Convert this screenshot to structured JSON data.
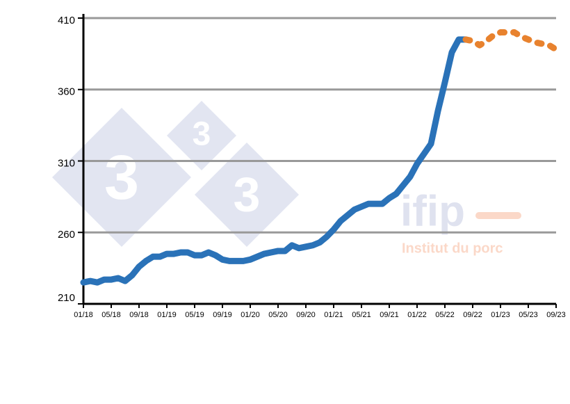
{
  "chart_data": {
    "type": "line",
    "categories": [
      "01/18",
      null,
      null,
      null,
      "05/18",
      null,
      null,
      null,
      "09/18",
      null,
      null,
      null,
      "01/19",
      null,
      null,
      null,
      "05/19",
      null,
      null,
      null,
      "09/19",
      null,
      null,
      null,
      "01/20",
      null,
      null,
      null,
      "05/20",
      null,
      null,
      null,
      "09/20",
      null,
      null,
      null,
      "01/21",
      null,
      null,
      null,
      "05/21",
      null,
      null,
      null,
      "09/21",
      null,
      null,
      null,
      "01/22",
      null,
      null,
      null,
      "05/22",
      null,
      null,
      null,
      "09/22",
      null,
      null,
      null,
      "01/23",
      null,
      null,
      null,
      "05/23",
      null,
      null,
      null,
      "09/23"
    ],
    "series": [
      {
        "color": "#2a72b8",
        "style": "solid",
        "values": [
          225,
          226,
          225,
          227,
          227,
          228,
          226,
          230,
          236,
          240,
          243,
          243,
          245,
          245,
          246,
          246,
          244,
          244,
          246,
          244,
          241,
          240,
          240,
          240,
          241,
          243,
          245,
          246,
          247,
          247,
          251,
          249,
          250,
          251,
          253,
          257,
          262,
          268,
          272,
          276,
          278,
          280,
          280,
          280,
          284,
          287,
          293,
          299,
          308,
          315,
          322,
          345,
          365,
          386,
          395,
          395,
          null,
          null,
          null,
          null,
          null,
          null,
          null,
          null,
          null,
          null,
          null,
          null,
          null
        ]
      },
      {
        "color": "#e8822e",
        "style": "dotted",
        "values": [
          null,
          null,
          null,
          null,
          null,
          null,
          null,
          null,
          null,
          null,
          null,
          null,
          null,
          null,
          null,
          null,
          null,
          null,
          null,
          null,
          null,
          null,
          null,
          null,
          null,
          null,
          null,
          null,
          null,
          null,
          null,
          null,
          null,
          null,
          null,
          null,
          null,
          null,
          null,
          null,
          null,
          null,
          null,
          null,
          null,
          null,
          null,
          null,
          null,
          null,
          null,
          null,
          null,
          null,
          null,
          395,
          394,
          391,
          394,
          398,
          400,
          400,
          400,
          397,
          395,
          393,
          392,
          391,
          388
        ]
      }
    ],
    "ylim": [
      210,
      410
    ],
    "yticks": [
      210,
      260,
      310,
      360,
      410
    ],
    "grid": true,
    "watermarks": [
      "3",
      "3",
      "3",
      "ifip",
      "Institut du porc"
    ]
  }
}
